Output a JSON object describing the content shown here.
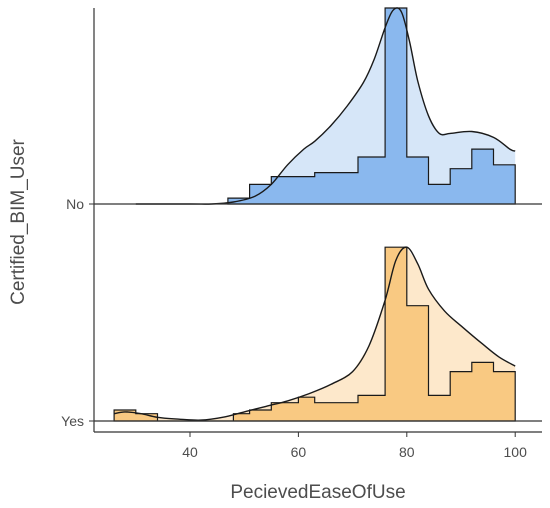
{
  "chart_data": {
    "type": "area",
    "xlabel": "PecievedEaseOfUse",
    "ylabel": "Certified_BIM_User",
    "xlim": [
      24,
      102
    ],
    "x_ticks": [
      40,
      60,
      80,
      100
    ],
    "groups": [
      {
        "label": "No",
        "hist_color": "#8ab8ee",
        "density_color": "#d6e6f8",
        "histogram": {
          "bin_edges": [
            47,
            51,
            55,
            63,
            71,
            76,
            80,
            84,
            88,
            92,
            96,
            100
          ],
          "heights": [
            0.03,
            0.1,
            0.14,
            0.16,
            0.24,
            1.0,
            0.24,
            0.1,
            0.18,
            0.28,
            0.2
          ]
        },
        "density": {
          "x": [
            30,
            40,
            44,
            48,
            52,
            55,
            58,
            61,
            63,
            66,
            69,
            72,
            74,
            76,
            77.5,
            79,
            80.5,
            82,
            84,
            86,
            88,
            92,
            96,
            99,
            100
          ],
          "y": [
            0.0,
            0.0,
            0.0,
            0.01,
            0.04,
            0.1,
            0.2,
            0.28,
            0.32,
            0.4,
            0.5,
            0.62,
            0.74,
            0.9,
            0.99,
            0.98,
            0.83,
            0.63,
            0.45,
            0.36,
            0.36,
            0.37,
            0.34,
            0.28,
            0.27
          ]
        }
      },
      {
        "label": "Yes",
        "hist_color": "#f9c982",
        "density_color": "#fde8cb",
        "histogram": {
          "bin_edges": [
            26,
            30,
            34,
            48,
            51,
            55,
            60,
            63,
            67,
            71,
            76,
            80,
            84,
            88,
            92,
            96,
            100
          ],
          "heights": [
            0.06,
            0.04,
            0.0,
            0.04,
            0.06,
            0.1,
            0.13,
            0.1,
            0.1,
            0.14,
            0.95,
            0.63,
            0.14,
            0.27,
            0.32,
            0.27
          ]
        },
        "density": {
          "x": [
            26,
            28,
            31,
            34,
            38,
            42,
            46,
            50,
            54,
            58,
            62,
            66,
            70,
            73,
            76,
            78,
            80,
            82,
            84,
            87,
            90,
            94,
            97,
            100
          ],
          "y": [
            0.04,
            0.05,
            0.04,
            0.02,
            0.01,
            0.005,
            0.02,
            0.05,
            0.08,
            0.11,
            0.15,
            0.2,
            0.27,
            0.41,
            0.66,
            0.88,
            0.95,
            0.86,
            0.72,
            0.6,
            0.52,
            0.42,
            0.35,
            0.3
          ]
        }
      }
    ]
  }
}
